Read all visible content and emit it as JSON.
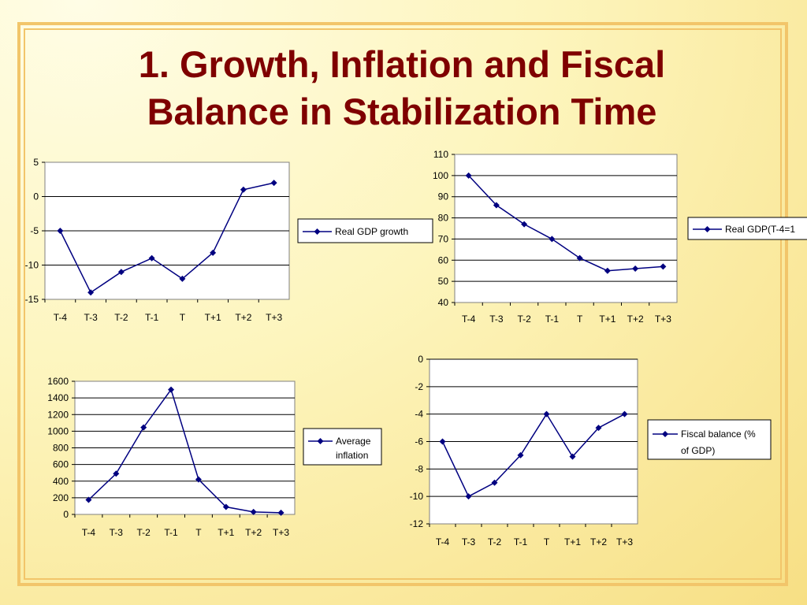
{
  "slide": {
    "title_line1": "1. Growth, Inflation and Fiscal",
    "title_line2": "Balance in Stabilization Time"
  },
  "colors": {
    "series": "#000080",
    "title": "#7f0000",
    "plot_bg": "#ffffff",
    "border_frame": "#f2c56a"
  },
  "chart_data": [
    {
      "type": "line",
      "categories": [
        "T-4",
        "T-3",
        "T-2",
        "T-1",
        "T",
        "T+1",
        "T+2",
        "T+3"
      ],
      "series": [
        {
          "name": "Real GDP growth",
          "values": [
            -5,
            -14,
            -11,
            -9,
            -12,
            -8.2,
            1,
            2
          ]
        }
      ],
      "ylim": [
        -15,
        5
      ],
      "yticks": [
        "5",
        "0",
        "-5",
        "-10",
        "-15"
      ],
      "grid": true,
      "legend": "right"
    },
    {
      "type": "line",
      "categories": [
        "T-4",
        "T-3",
        "T-2",
        "T-1",
        "T",
        "T+1",
        "T+2",
        "T+3"
      ],
      "series": [
        {
          "name": "Real GDP(T-4=1",
          "values": [
            100,
            86,
            77,
            70,
            61,
            55,
            56,
            57
          ]
        }
      ],
      "ylim": [
        40,
        110
      ],
      "yticks": [
        "110",
        "100",
        "90",
        "80",
        "70",
        "60",
        "50",
        "40"
      ],
      "grid": true,
      "legend": "right"
    },
    {
      "type": "line",
      "categories": [
        "T-4",
        "T-3",
        "T-2",
        "T-1",
        "T",
        "T+1",
        "T+2",
        "T+3"
      ],
      "series": [
        {
          "name": "Average inflation",
          "values": [
            175,
            490,
            1045,
            1500,
            420,
            90,
            30,
            20
          ]
        }
      ],
      "ylim": [
        0,
        1600
      ],
      "yticks": [
        "1600",
        "1400",
        "1200",
        "1000",
        "800",
        "600",
        "400",
        "200",
        "0"
      ],
      "grid": true,
      "legend": "right"
    },
    {
      "type": "line",
      "categories": [
        "T-4",
        "T-3",
        "T-2",
        "T-1",
        "T",
        "T+1",
        "T+2",
        "T+3"
      ],
      "series": [
        {
          "name": "Fiscal balance (% of GDP)",
          "values": [
            -6,
            -10,
            -9,
            -7,
            -4,
            -7.1,
            -5,
            -4
          ]
        }
      ],
      "ylim": [
        -12,
        0
      ],
      "yticks": [
        "0",
        "-2",
        "-4",
        "-6",
        "-8",
        "-10",
        "-12"
      ],
      "grid": true,
      "legend": "right"
    }
  ]
}
